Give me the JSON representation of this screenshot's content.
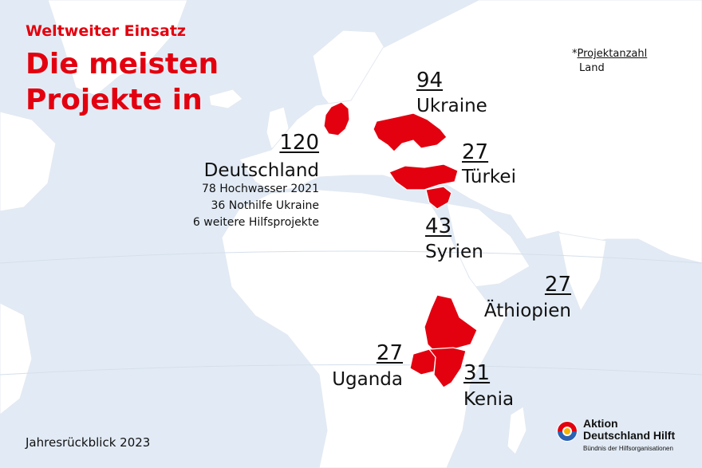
{
  "header": {
    "kicker": "Weltweiter Einsatz",
    "title_line1": "Die meisten",
    "title_line2": "Projekte in"
  },
  "legend": {
    "line1_prefix": "*",
    "line1_label": "Projektanzahl",
    "line2": "Land"
  },
  "countries": {
    "deutschland": {
      "count": "120",
      "name": "Deutschland",
      "details": [
        "78 Hochwasser 2021",
        "36 Nothilfe Ukraine",
        "6 weitere Hilfsprojekte"
      ]
    },
    "ukraine": {
      "count": "94",
      "name": "Ukraine"
    },
    "tuerkei": {
      "count": "27",
      "name": "Türkei"
    },
    "syrien": {
      "count": "43",
      "name": "Syrien"
    },
    "aethiopien": {
      "count": "27",
      "name": "Äthiopien"
    },
    "uganda": {
      "count": "27",
      "name": "Uganda"
    },
    "kenia": {
      "count": "31",
      "name": "Kenia"
    }
  },
  "footer": {
    "text": "Jahresrückblick 2023"
  },
  "logo": {
    "line1": "Aktion",
    "line2": "Deutschland Hilft",
    "subline": "Bündnis der Hilfsorganisationen"
  },
  "colors": {
    "highlight": "#e3000f",
    "ocean": "#e2ebf5",
    "land": "#ffffff",
    "text": "#111111"
  }
}
